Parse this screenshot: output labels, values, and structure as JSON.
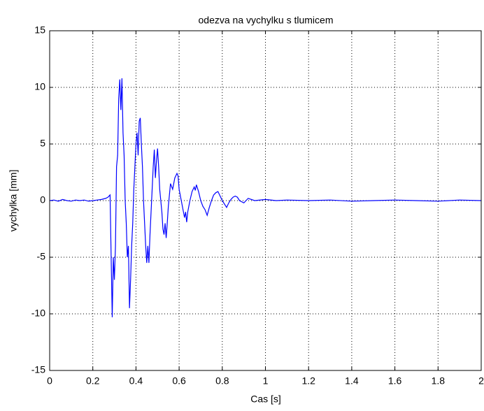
{
  "chart_data": {
    "type": "line",
    "title": "odezva na vychylku s tlumicem",
    "x_label": "Cas [s]",
    "y_label": "vychylka [mm]",
    "x": [
      0,
      0.02,
      0.04,
      0.06,
      0.08,
      0.1,
      0.12,
      0.14,
      0.16,
      0.18,
      0.2,
      0.22,
      0.24,
      0.26,
      0.27,
      0.28,
      0.285,
      0.29,
      0.295,
      0.3,
      0.305,
      0.31,
      0.315,
      0.32,
      0.325,
      0.33,
      0.335,
      0.34,
      0.345,
      0.35,
      0.355,
      0.36,
      0.365,
      0.37,
      0.375,
      0.38,
      0.385,
      0.39,
      0.395,
      0.4,
      0.405,
      0.41,
      0.415,
      0.42,
      0.425,
      0.43,
      0.435,
      0.44,
      0.445,
      0.45,
      0.455,
      0.46,
      0.465,
      0.47,
      0.475,
      0.48,
      0.485,
      0.49,
      0.495,
      0.5,
      0.505,
      0.51,
      0.515,
      0.52,
      0.525,
      0.53,
      0.535,
      0.54,
      0.545,
      0.55,
      0.555,
      0.56,
      0.57,
      0.58,
      0.59,
      0.595,
      0.6,
      0.61,
      0.62,
      0.625,
      0.63,
      0.635,
      0.64,
      0.65,
      0.66,
      0.67,
      0.675,
      0.68,
      0.69,
      0.7,
      0.71,
      0.72,
      0.73,
      0.74,
      0.75,
      0.76,
      0.77,
      0.78,
      0.79,
      0.8,
      0.81,
      0.82,
      0.83,
      0.84,
      0.85,
      0.86,
      0.87,
      0.88,
      0.9,
      0.92,
      0.95,
      1.0,
      1.05,
      1.1,
      1.2,
      1.3,
      1.4,
      1.5,
      1.6,
      1.7,
      1.8,
      1.9,
      2.0
    ],
    "series": [
      {
        "name": "vychylka",
        "color": "#0000ff",
        "values": [
          0,
          0.05,
          -0.05,
          0.1,
          0,
          -0.05,
          0.05,
          0,
          0.05,
          -0.05,
          0,
          0.05,
          0.1,
          0.2,
          0.3,
          0.5,
          -5,
          -10.3,
          -5,
          -7,
          -4,
          3,
          4,
          9,
          10.7,
          8,
          10.8,
          6,
          4,
          0,
          -2,
          -5,
          -4,
          -9.5,
          -7,
          -4,
          -2,
          1,
          3,
          5,
          6,
          4,
          7,
          7.3,
          5,
          3,
          0,
          -2,
          -4,
          -5.5,
          -4,
          -5.5,
          -3,
          -1,
          1,
          3,
          4.5,
          2,
          3.5,
          4.6,
          3,
          1,
          0,
          -1,
          -2.5,
          -3,
          -2,
          -3.3,
          -2,
          -0.5,
          0.5,
          1.5,
          1,
          2,
          2.4,
          2.2,
          1,
          0,
          -1,
          -1.5,
          -1,
          -1.9,
          -1,
          0,
          0.8,
          1.2,
          0.9,
          1.4,
          0.8,
          0,
          -0.5,
          -0.8,
          -1.3,
          -0.6,
          0,
          0.5,
          0.7,
          0.8,
          0.4,
          0,
          -0.3,
          -0.6,
          -0.2,
          0.1,
          0.3,
          0.4,
          0.3,
          0,
          -0.2,
          0.2,
          0,
          0.1,
          0,
          0.05,
          0,
          0.05,
          -0.05,
          0,
          0.05,
          0,
          -0.05,
          0.05,
          0
        ]
      }
    ],
    "xlim": [
      0,
      2
    ],
    "ylim": [
      -15,
      15
    ],
    "xticks": [
      0,
      0.2,
      0.4,
      0.6,
      0.8,
      1,
      1.2,
      1.4,
      1.6,
      1.8,
      2
    ],
    "yticks": [
      -15,
      -10,
      -5,
      0,
      5,
      10,
      15
    ],
    "grid": true
  }
}
